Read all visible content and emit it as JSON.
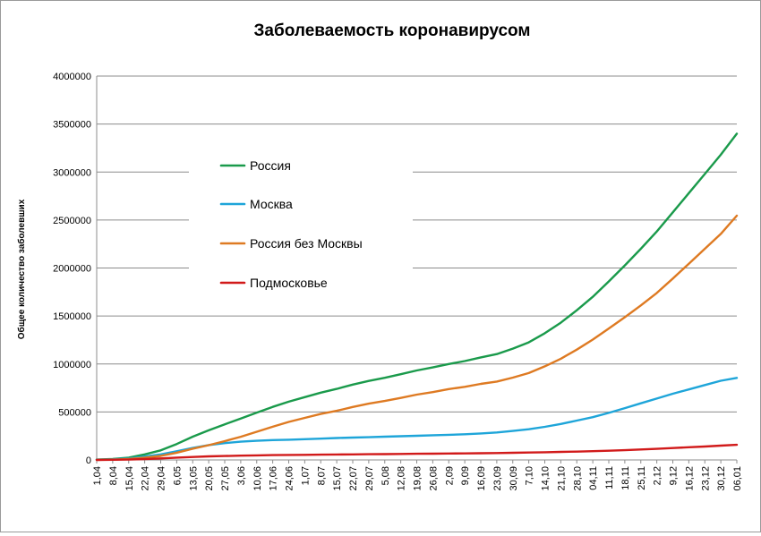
{
  "chart_data": {
    "type": "line",
    "title": "Заболеваемость коронавирусом",
    "ylabel": "Общее количество заболевших",
    "xlabel": "",
    "ylim": [
      0,
      4000000
    ],
    "yticks": [
      0,
      500000,
      1000000,
      1500000,
      2000000,
      2500000,
      3000000,
      3500000,
      4000000
    ],
    "grid": true,
    "legend_position": "upper-left",
    "categories": [
      "1,04",
      "8,04",
      "15,04",
      "22,04",
      "29,04",
      "6,05",
      "13,05",
      "20,05",
      "27,05",
      "3,06",
      "10,06",
      "17,06",
      "24,06",
      "1,07",
      "8,07",
      "15,07",
      "22,07",
      "29,07",
      "5,08",
      "12,08",
      "19,08",
      "26,08",
      "2,09",
      "9,09",
      "16,09",
      "23,09",
      "30,09",
      "7,10",
      "14,10",
      "21,10",
      "28,10",
      "04,11",
      "11,11",
      "18,11",
      "25,11",
      "2,12",
      "9,12",
      "16,12",
      "23,12",
      "30,12",
      "06,01"
    ],
    "series": [
      {
        "name": "Россия",
        "color": "#1a9a4b",
        "values": [
          3500,
          10100,
          24500,
          58000,
          100000,
          165900,
          242300,
          308700,
          370700,
          431700,
          493700,
          552500,
          606900,
          654400,
          700800,
          739900,
          785000,
          823500,
          856300,
          893000,
          932500,
          963700,
          1000000,
          1030000,
          1068300,
          1103000,
          1159600,
          1225000,
          1320000,
          1430000,
          1560000,
          1700000,
          1860000,
          2027000,
          2200000,
          2380000,
          2580000,
          2780000,
          2980000,
          3180000,
          3400000
        ]
      },
      {
        "name": "Москва",
        "color": "#1ea5d9",
        "values": [
          2500,
          6500,
          15000,
          35000,
          58000,
          90000,
          125000,
          155000,
          175000,
          190000,
          200000,
          207000,
          211000,
          216000,
          222000,
          228000,
          233000,
          237000,
          242000,
          247000,
          252000,
          257000,
          262000,
          268000,
          276000,
          286000,
          302000,
          320000,
          345000,
          375000,
          410000,
          446000,
          490000,
          540000,
          590000,
          640000,
          690000,
          735000,
          780000,
          825000,
          855000
        ]
      },
      {
        "name": "Россия без Москвы",
        "color": "#de7a22",
        "values": [
          1000,
          3600,
          9500,
          23000,
          42000,
          75900,
          117300,
          153700,
          195700,
          241700,
          293700,
          345500,
          395900,
          438400,
          478800,
          511900,
          552000,
          586500,
          614300,
          646000,
          680500,
          706700,
          738000,
          762000,
          792300,
          817000,
          857600,
          905000,
          975000,
          1055000,
          1150000,
          1254000,
          1370000,
          1487000,
          1610000,
          1740000,
          1890000,
          2045000,
          2200000,
          2355000,
          2545000
        ]
      },
      {
        "name": "Подмосковье",
        "color": "#d11a1a",
        "values": [
          300,
          1500,
          4000,
          9000,
          16000,
          24000,
          31000,
          37000,
          41000,
          45000,
          48000,
          50500,
          52000,
          53500,
          55000,
          56500,
          58000,
          59500,
          61000,
          62500,
          64000,
          65500,
          67000,
          68500,
          70000,
          72000,
          74500,
          77000,
          80000,
          83500,
          87000,
          91000,
          96000,
          102000,
          109000,
          116000,
          124000,
          132000,
          140000,
          149000,
          158000
        ]
      }
    ]
  }
}
